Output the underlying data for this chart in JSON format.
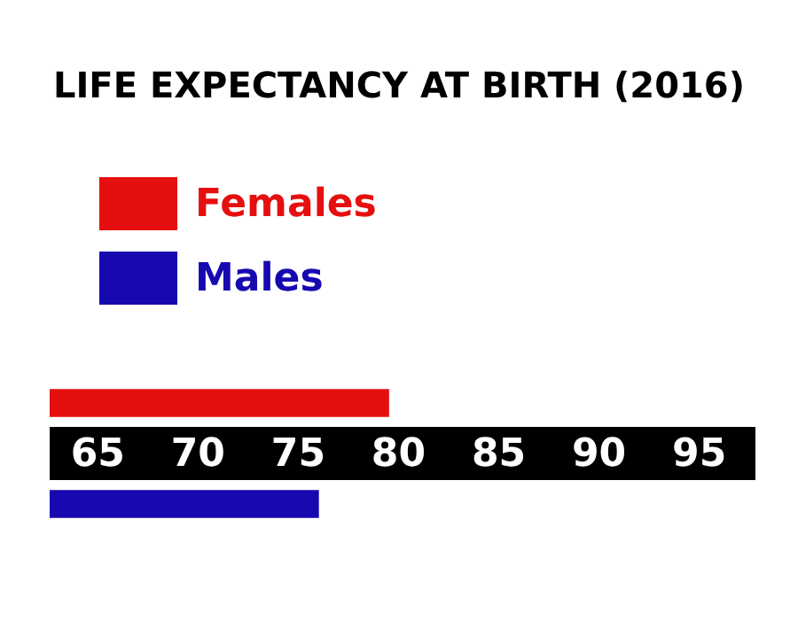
{
  "chart_data": {
    "type": "bar",
    "title": "LIFE EXPECTANCY AT BIRTH (2016)",
    "orientation": "horizontal",
    "stacked": true,
    "categories": [
      null,
      null
    ],
    "series": [
      {
        "name": "Females",
        "color": "#e60f0f",
        "values": [
          79.5,
          null
        ]
      },
      {
        "name": "Males",
        "color": "#1709b0",
        "values": [
          null,
          76.0
        ]
      }
    ],
    "xlim": [
      62.6,
      97.8
    ],
    "xticks": [
      65,
      70,
      75,
      80,
      85,
      90,
      95
    ],
    "grid": false,
    "legend": "top left"
  }
}
